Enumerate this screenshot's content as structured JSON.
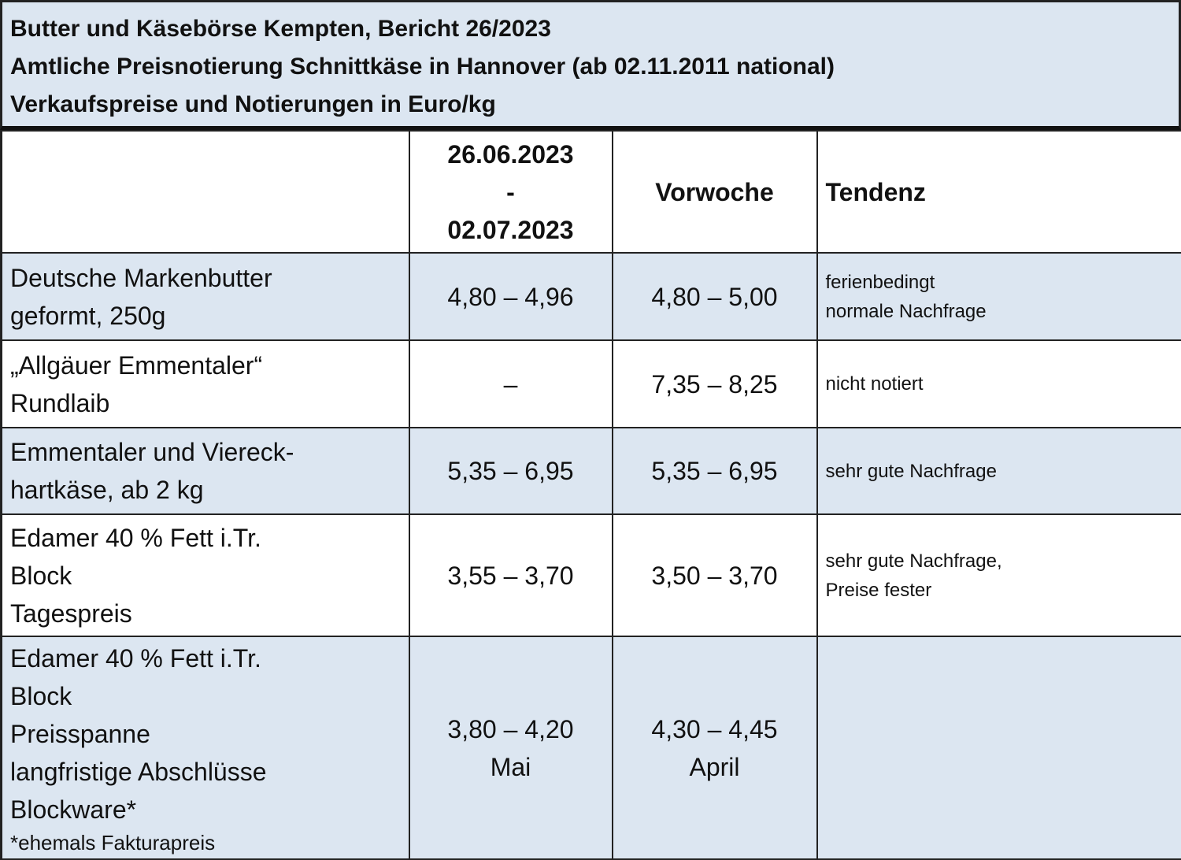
{
  "title": {
    "line1": "Butter und Käsebörse Kempten, Bericht 26/2023",
    "line2": "Amtliche Preisnotierung Schnittkäse in Hannover (ab 02.11.2011 national)",
    "line3": "Verkaufspreise und Notierungen in Euro/kg"
  },
  "header": {
    "period_start": "26.06.2023",
    "period_sep": "-",
    "period_end": "02.07.2023",
    "previous_week": "Vorwoche",
    "trend": "Tendenz"
  },
  "rows": [
    {
      "product": [
        "Deutsche Markenbutter",
        "geformt, 250g"
      ],
      "current": "4,80 – 4,96",
      "previous": "4,80 – 5,00",
      "trend": [
        "ferienbedingt",
        "normale Nachfrage"
      ]
    },
    {
      "product": [
        "„Allgäuer Emmentaler“",
        "Rundlaib"
      ],
      "current": "–",
      "previous": "7,35 – 8,25",
      "trend": [
        "nicht notiert"
      ]
    },
    {
      "product": [
        "Emmentaler und Viereck-",
        "hartkäse, ab 2 kg"
      ],
      "current": "5,35 – 6,95",
      "previous": "5,35 – 6,95",
      "trend": [
        "sehr gute Nachfrage"
      ]
    },
    {
      "product": [
        "Edamer 40 % Fett i.Tr.",
        "Block",
        "Tagespreis"
      ],
      "current": "3,55 – 3,70",
      "previous": "3,50 – 3,70",
      "trend": [
        "sehr gute Nachfrage,",
        "Preise fester"
      ]
    },
    {
      "product": [
        "Edamer 40 % Fett i.Tr.",
        "Block",
        "Preisspanne",
        "langfristige Abschlüsse",
        "Blockware*"
      ],
      "note": "*ehemals Fakturapreis",
      "current": "3,80 – 4,20",
      "current_sub": "Mai",
      "previous": "4,30 – 4,45",
      "previous_sub": "April",
      "trend": []
    }
  ]
}
